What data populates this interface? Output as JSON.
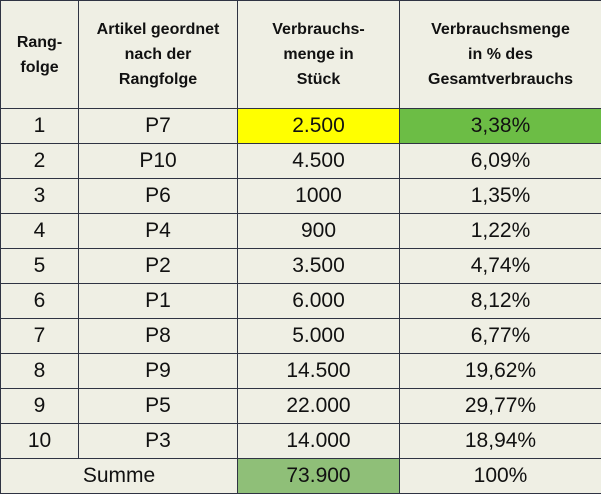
{
  "headers": {
    "rank": [
      "Rang-",
      "folge"
    ],
    "article": [
      "Artikel geordnet",
      "nach der",
      "Rangfolge"
    ],
    "quantity": [
      "Verbrauchs-",
      "menge in",
      "Stück"
    ],
    "percent": [
      "Verbrauchsmenge",
      "in % des",
      "Gesamtverbrauchs"
    ]
  },
  "rows": [
    {
      "rank": "1",
      "article": "P7",
      "quantity": "2.500",
      "percent": "3,38%"
    },
    {
      "rank": "2",
      "article": "P10",
      "quantity": "4.500",
      "percent": "6,09%"
    },
    {
      "rank": "3",
      "article": "P6",
      "quantity": "1000",
      "percent": "1,35%"
    },
    {
      "rank": "4",
      "article": "P4",
      "quantity": "900",
      "percent": "1,22%"
    },
    {
      "rank": "5",
      "article": "P2",
      "quantity": "3.500",
      "percent": "4,74%"
    },
    {
      "rank": "6",
      "article": "P1",
      "quantity": "6.000",
      "percent": "8,12%"
    },
    {
      "rank": "7",
      "article": "P8",
      "quantity": "5.000",
      "percent": "6,77%"
    },
    {
      "rank": "8",
      "article": "P9",
      "quantity": "14.500",
      "percent": "19,62%"
    },
    {
      "rank": "9",
      "article": "P5",
      "quantity": "22.000",
      "percent": "29,77%"
    },
    {
      "rank": "10",
      "article": "P3",
      "quantity": "14.000",
      "percent": "18,94%"
    }
  ],
  "total": {
    "label": "Summe",
    "quantity": "73.900",
    "percent": "100%"
  },
  "colors": {
    "background": "#efefe4",
    "grid": "#2f3342",
    "highlight_yellow": "#ffff00",
    "highlight_green": "#6cbd45",
    "highlight_green_soft": "#8fbf78"
  }
}
